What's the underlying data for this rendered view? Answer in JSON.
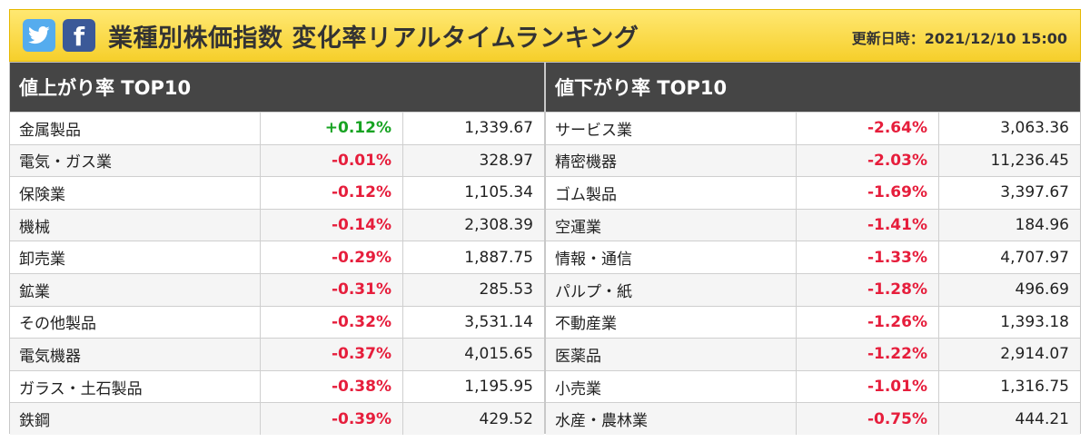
{
  "header": {
    "title": "業種別株価指数 変化率リアルタイムランキング",
    "updated": "更新日時：2021/12/10 15:00"
  },
  "share": {
    "twitter_icon": "twitter-icon",
    "facebook_icon": "facebook-icon",
    "facebook_glyph": "f"
  },
  "colors": {
    "header": "#f6cf2b",
    "column_head": "#454545",
    "up": "#17a322",
    "down": "#e61e3c"
  },
  "gainers": {
    "title": "値上がり率 TOP10",
    "rows": [
      {
        "name": "金属製品",
        "rate": "+0.12%",
        "value": "1,339.67",
        "dir": "up"
      },
      {
        "name": "電気・ガス業",
        "rate": "-0.01%",
        "value": "328.97",
        "dir": "down"
      },
      {
        "name": "保険業",
        "rate": "-0.12%",
        "value": "1,105.34",
        "dir": "down"
      },
      {
        "name": "機械",
        "rate": "-0.14%",
        "value": "2,308.39",
        "dir": "down"
      },
      {
        "name": "卸売業",
        "rate": "-0.29%",
        "value": "1,887.75",
        "dir": "down"
      },
      {
        "name": "鉱業",
        "rate": "-0.31%",
        "value": "285.53",
        "dir": "down"
      },
      {
        "name": "その他製品",
        "rate": "-0.32%",
        "value": "3,531.14",
        "dir": "down"
      },
      {
        "name": "電気機器",
        "rate": "-0.37%",
        "value": "4,015.65",
        "dir": "down"
      },
      {
        "name": "ガラス・土石製品",
        "rate": "-0.38%",
        "value": "1,195.95",
        "dir": "down"
      },
      {
        "name": "鉄鋼",
        "rate": "-0.39%",
        "value": "429.52",
        "dir": "down"
      }
    ]
  },
  "losers": {
    "title": "値下がり率 TOP10",
    "rows": [
      {
        "name": "サービス業",
        "rate": "-2.64%",
        "value": "3,063.36",
        "dir": "down"
      },
      {
        "name": "精密機器",
        "rate": "-2.03%",
        "value": "11,236.45",
        "dir": "down"
      },
      {
        "name": "ゴム製品",
        "rate": "-1.69%",
        "value": "3,397.67",
        "dir": "down"
      },
      {
        "name": "空運業",
        "rate": "-1.41%",
        "value": "184.96",
        "dir": "down"
      },
      {
        "name": "情報・通信",
        "rate": "-1.33%",
        "value": "4,707.97",
        "dir": "down"
      },
      {
        "name": "パルプ・紙",
        "rate": "-1.28%",
        "value": "496.69",
        "dir": "down"
      },
      {
        "name": "不動産業",
        "rate": "-1.26%",
        "value": "1,393.18",
        "dir": "down"
      },
      {
        "name": "医薬品",
        "rate": "-1.22%",
        "value": "2,914.07",
        "dir": "down"
      },
      {
        "name": "小売業",
        "rate": "-1.01%",
        "value": "1,316.75",
        "dir": "down"
      },
      {
        "name": "水産・農林業",
        "rate": "-0.75%",
        "value": "444.21",
        "dir": "down"
      }
    ]
  }
}
